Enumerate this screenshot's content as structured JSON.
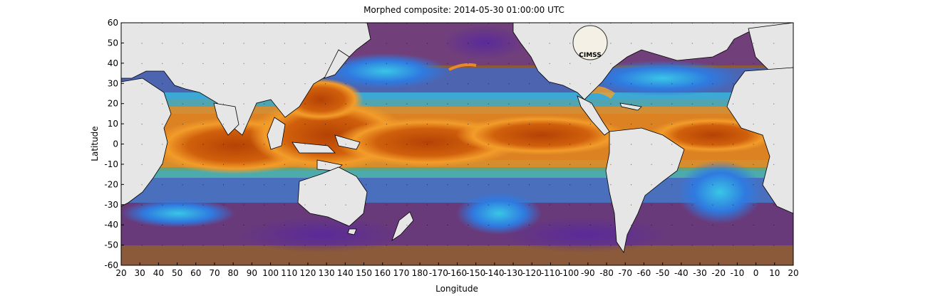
{
  "title": "Morphed composite: 2014-05-30 01:00:00 UTC",
  "xlabel": "Longitude",
  "ylabel": "Latitude",
  "logo_text": "CIMSS",
  "x_ticks": [
    "20",
    "30",
    "40",
    "50",
    "60",
    "70",
    "80",
    "90",
    "100",
    "110",
    "120",
    "130",
    "140",
    "150",
    "160",
    "170",
    "180",
    "-170",
    "-160",
    "-150",
    "-140",
    "-130",
    "-120",
    "-110",
    "-100",
    "-90",
    "-80",
    "-70",
    "-60",
    "-50",
    "-40",
    "-30",
    "-20",
    "-10",
    "0",
    "10",
    "20"
  ],
  "y_ticks": [
    "60",
    "50",
    "40",
    "30",
    "20",
    "10",
    "0",
    "-10",
    "-20",
    "-30",
    "-40",
    "-50",
    "-60"
  ],
  "colors": {
    "land": "#e6e6e6",
    "dry": "#7a4a2e",
    "purple": "#6a2a8c",
    "blue": "#2d6be0",
    "cyan": "#35c8e8",
    "green": "#7ede5a",
    "orange": "#f08a1c",
    "wet": "#c24a08"
  }
}
